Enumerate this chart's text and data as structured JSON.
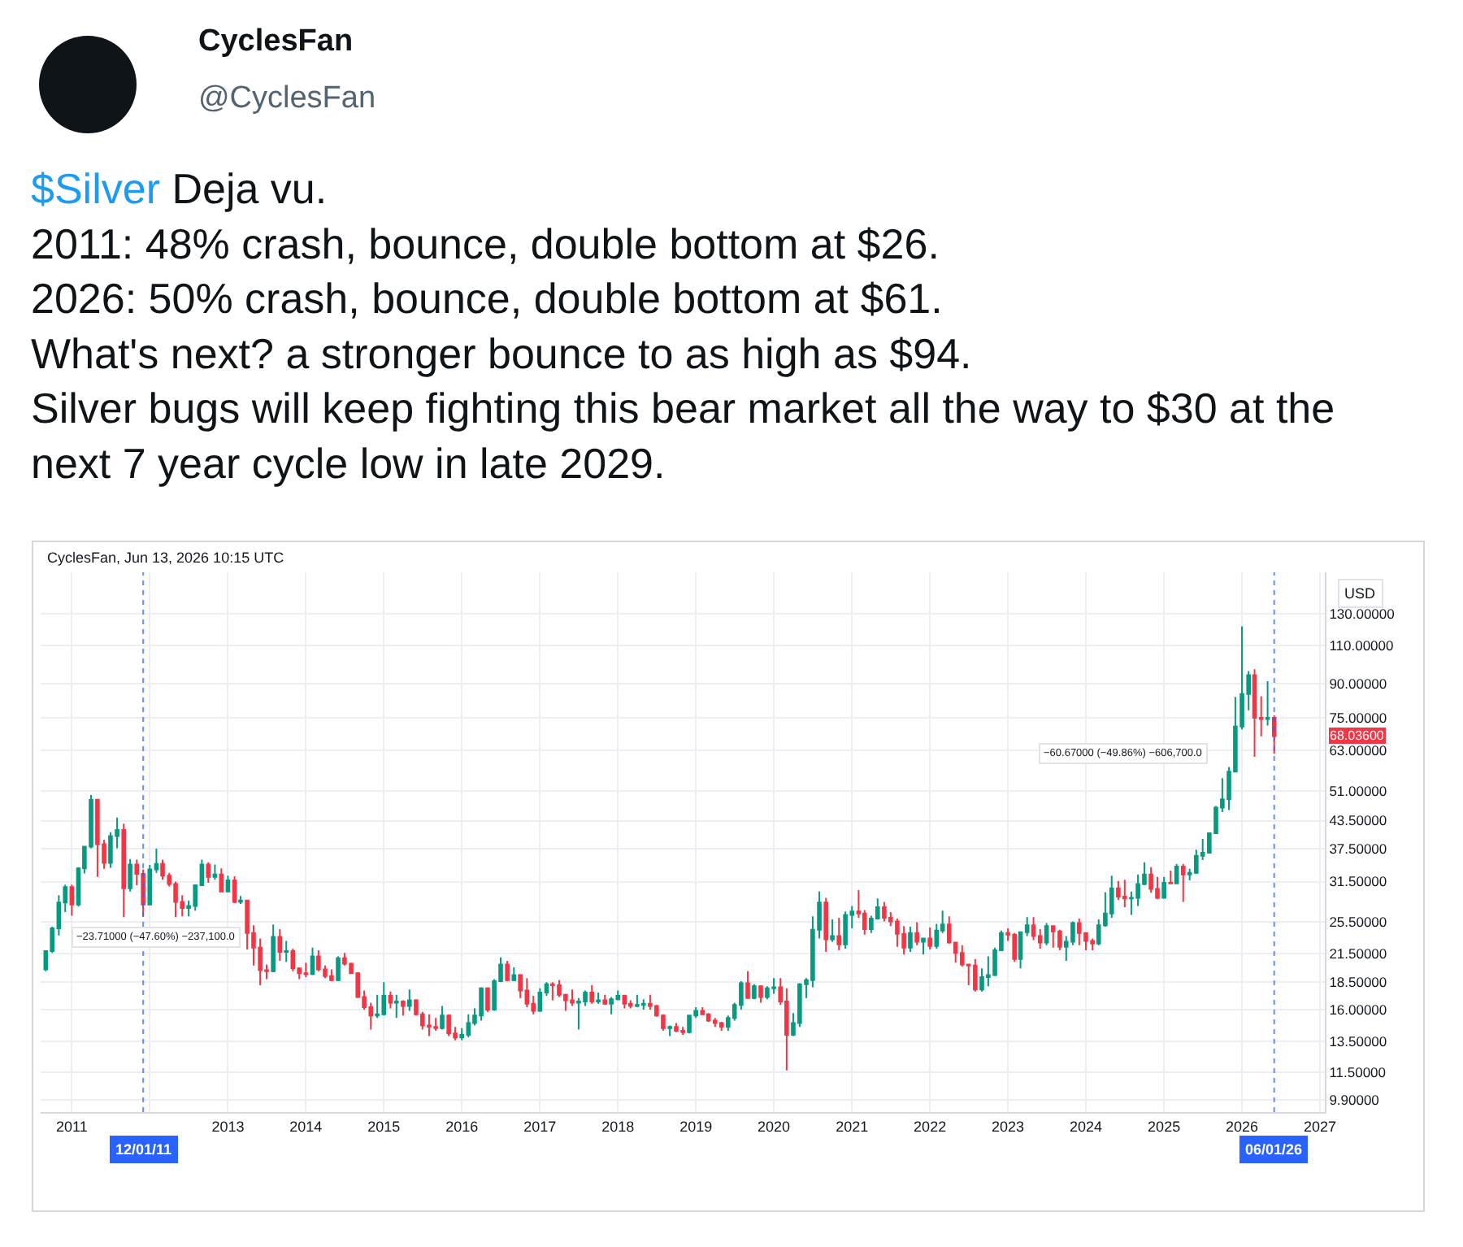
{
  "chart_data": {
    "type": "candlestick",
    "title": "$Silver Deja vu.\n2011: 48% crash, bounce, double bottom at $26.\n2026: 50% crash, bounce, double bottom at $61.\nWhat's next? a stronger bounce to as high as $94.\nSilver bugs will keep fighting this bear market all the way to $30 at the\nnext 7 year cycle low in late 2029.",
    "subtitle": "CyclesFan, Jun 13, 2026 10:15 UTC",
    "ylabel": "USD",
    "annotations": [
      "CyclesFan",
      "@CyclesFan",
      {
        "text": "−23.71000 (−47.60%) −237,100.0",
        "x": "2011-09",
        "y": 26.1
      },
      "−60.67000 (−49.86%) −606,700.0",
      "68.03600"
    ],
    "x": [
      "2010-09",
      "2010-10",
      "2010-11",
      "2010-12",
      "2011-01",
      "2011-02",
      "2011-03",
      "2011-04",
      "2011-05",
      "2011-06",
      "2011-07",
      "2011-08",
      "2011-09",
      "2011-10",
      "2011-11",
      "2011-12",
      "2012-01",
      "2012-02",
      "2012-03",
      "2012-04",
      "2012-05",
      "2012-06",
      "2012-07",
      "2012-08",
      "2012-09",
      "2012-10",
      "2012-11",
      "2012-12",
      "2013-01",
      "2013-02",
      "2013-03",
      "2013-04",
      "2013-05",
      "2013-06",
      "2013-07",
      "2013-08",
      "2013-09",
      "2013-10",
      "2013-11",
      "2013-12",
      "2014-01",
      "2014-02",
      "2014-03",
      "2014-04",
      "2014-05",
      "2014-06",
      "2014-07",
      "2014-08",
      "2014-09",
      "2014-10",
      "2014-11",
      "2014-12",
      "2015-01",
      "2015-02",
      "2015-03",
      "2015-04",
      "2015-05",
      "2015-06",
      "2015-07",
      "2015-08",
      "2015-09",
      "2015-10",
      "2015-11",
      "2015-12",
      "2016-01",
      "2016-02",
      "2016-03",
      "2016-04",
      "2016-05",
      "2016-06",
      "2016-07",
      "2016-08",
      "2016-09",
      "2016-10",
      "2016-11",
      "2016-12",
      "2017-01",
      "2017-02",
      "2017-03",
      "2017-04",
      "2017-05",
      "2017-06",
      "2017-07",
      "2017-08",
      "2017-09",
      "2017-10",
      "2017-11",
      "2017-12",
      "2018-01",
      "2018-02",
      "2018-03",
      "2018-04",
      "2018-05",
      "2018-06",
      "2018-07",
      "2018-08",
      "2018-09",
      "2018-10",
      "2018-11",
      "2018-12",
      "2019-01",
      "2019-02",
      "2019-03",
      "2019-04",
      "2019-05",
      "2019-06",
      "2019-07",
      "2019-08",
      "2019-09",
      "2019-10",
      "2019-11",
      "2019-12",
      "2020-01",
      "2020-02",
      "2020-03",
      "2020-04",
      "2020-05",
      "2020-06",
      "2020-07",
      "2020-08",
      "2020-09",
      "2020-10",
      "2020-11",
      "2020-12",
      "2021-01",
      "2021-02",
      "2021-03",
      "2021-04",
      "2021-05",
      "2021-06",
      "2021-07",
      "2021-08",
      "2021-09",
      "2021-10",
      "2021-11",
      "2021-12",
      "2022-01",
      "2022-02",
      "2022-03",
      "2022-04",
      "2022-05",
      "2022-06",
      "2022-07",
      "2022-08",
      "2022-09",
      "2022-10",
      "2022-11",
      "2022-12",
      "2023-01",
      "2023-02",
      "2023-03",
      "2023-04",
      "2023-05",
      "2023-06",
      "2023-07",
      "2023-08",
      "2023-09",
      "2023-10",
      "2023-11",
      "2023-12",
      "2024-01",
      "2024-02",
      "2024-03",
      "2024-04",
      "2024-05",
      "2024-06",
      "2024-07",
      "2024-08",
      "2024-09",
      "2024-10",
      "2024-11",
      "2024-12",
      "2025-01",
      "2025-02",
      "2025-03",
      "2025-04",
      "2025-05",
      "2025-06",
      "2025-07",
      "2025-08",
      "2025-09",
      "2025-10",
      "2025-11",
      "2025-12",
      "2026-01",
      "2026-02",
      "2026-03",
      "2026-04",
      "2026-05",
      "2026-06"
    ],
    "ohlc": [
      [
        19.8,
        21.9,
        19.6,
        21.8
      ],
      [
        21.8,
        24.8,
        21.6,
        24.6
      ],
      [
        24.6,
        29.3,
        23.7,
        28.2
      ],
      [
        28.2,
        31.0,
        26.8,
        30.6
      ],
      [
        30.6,
        31.0,
        26.3,
        27.9
      ],
      [
        27.9,
        34.0,
        27.6,
        33.8
      ],
      [
        33.8,
        38.0,
        32.9,
        37.9
      ],
      [
        37.9,
        49.8,
        37.6,
        48.6
      ],
      [
        48.6,
        48.7,
        32.3,
        38.4
      ],
      [
        38.4,
        39.3,
        33.7,
        34.8
      ],
      [
        34.8,
        40.9,
        33.9,
        40.1
      ],
      [
        40.1,
        44.2,
        37.6,
        41.4
      ],
      [
        41.4,
        42.8,
        26.1,
        30.4
      ],
      [
        30.4,
        35.5,
        29.9,
        34.5
      ],
      [
        34.5,
        35.4,
        30.9,
        32.8
      ],
      [
        32.8,
        33.6,
        26.2,
        27.9
      ],
      [
        27.9,
        34.4,
        27.8,
        33.6
      ],
      [
        33.6,
        37.5,
        33.0,
        34.6
      ],
      [
        34.6,
        35.4,
        31.8,
        32.5
      ],
      [
        32.5,
        33.0,
        30.7,
        31.1
      ],
      [
        31.1,
        31.5,
        26.1,
        28.3
      ],
      [
        28.3,
        29.3,
        26.2,
        27.4
      ],
      [
        27.4,
        28.5,
        26.2,
        27.7
      ],
      [
        27.7,
        31.0,
        27.0,
        30.9
      ],
      [
        30.9,
        35.4,
        30.8,
        34.5
      ],
      [
        34.5,
        34.9,
        31.3,
        32.3
      ],
      [
        32.3,
        34.5,
        31.8,
        32.7
      ],
      [
        32.7,
        33.8,
        29.8,
        29.9
      ],
      [
        29.9,
        32.5,
        29.8,
        31.7
      ],
      [
        31.7,
        32.4,
        28.1,
        28.3
      ],
      [
        28.3,
        29.2,
        28.0,
        28.5
      ],
      [
        28.5,
        28.6,
        22.0,
        24.0
      ],
      [
        24.0,
        25.0,
        20.2,
        22.2
      ],
      [
        22.2,
        23.3,
        18.2,
        19.7
      ],
      [
        19.7,
        20.3,
        18.8,
        19.6
      ],
      [
        19.6,
        25.1,
        19.5,
        23.5
      ],
      [
        23.5,
        24.5,
        20.7,
        21.7
      ],
      [
        21.7,
        23.0,
        20.6,
        21.8
      ],
      [
        21.8,
        22.1,
        19.6,
        19.9
      ],
      [
        19.9,
        20.0,
        18.8,
        19.4
      ],
      [
        19.4,
        20.5,
        19.0,
        19.3
      ],
      [
        19.3,
        22.2,
        19.2,
        21.2
      ],
      [
        21.2,
        21.9,
        19.6,
        19.8
      ],
      [
        19.8,
        20.2,
        18.9,
        19.1
      ],
      [
        19.1,
        19.8,
        18.6,
        18.7
      ],
      [
        18.7,
        21.2,
        18.6,
        21.0
      ],
      [
        21.0,
        21.6,
        20.2,
        20.4
      ],
      [
        20.4,
        20.5,
        19.3,
        19.4
      ],
      [
        19.4,
        19.5,
        17.0,
        17.1
      ],
      [
        17.1,
        17.7,
        16.0,
        16.2
      ],
      [
        16.2,
        16.6,
        14.4,
        15.5
      ],
      [
        15.5,
        17.3,
        15.3,
        15.6
      ],
      [
        15.6,
        18.5,
        15.5,
        17.2
      ],
      [
        17.2,
        17.6,
        16.1,
        16.6
      ],
      [
        16.6,
        17.3,
        15.3,
        16.7
      ],
      [
        16.7,
        16.8,
        15.5,
        16.3
      ],
      [
        16.3,
        17.8,
        15.9,
        16.8
      ],
      [
        16.8,
        16.9,
        15.5,
        15.6
      ],
      [
        15.6,
        15.8,
        14.4,
        14.7
      ],
      [
        14.7,
        15.6,
        13.9,
        14.6
      ],
      [
        14.6,
        15.3,
        14.3,
        14.5
      ],
      [
        14.5,
        16.3,
        14.4,
        15.5
      ],
      [
        15.5,
        15.6,
        13.9,
        14.1
      ],
      [
        14.1,
        14.6,
        13.6,
        13.8
      ],
      [
        13.8,
        14.5,
        13.6,
        14.0
      ],
      [
        14.0,
        15.6,
        13.8,
        14.9
      ],
      [
        14.9,
        16.1,
        14.7,
        15.5
      ],
      [
        15.5,
        18.0,
        15.1,
        17.9
      ],
      [
        17.9,
        18.0,
        15.8,
        16.0
      ],
      [
        16.0,
        18.8,
        15.9,
        18.6
      ],
      [
        18.6,
        21.1,
        18.5,
        20.3
      ],
      [
        20.3,
        20.7,
        18.6,
        18.7
      ],
      [
        18.7,
        20.0,
        18.6,
        19.2
      ],
      [
        19.2,
        19.3,
        17.0,
        17.7
      ],
      [
        17.7,
        18.9,
        16.2,
        16.5
      ],
      [
        16.5,
        17.2,
        15.6,
        15.9
      ],
      [
        15.9,
        17.9,
        15.8,
        17.5
      ],
      [
        17.5,
        18.5,
        17.2,
        18.3
      ],
      [
        18.3,
        18.5,
        16.8,
        18.2
      ],
      [
        18.2,
        18.7,
        17.1,
        17.3
      ],
      [
        17.3,
        17.4,
        15.9,
        16.8
      ],
      [
        16.8,
        17.8,
        16.3,
        16.6
      ],
      [
        16.6,
        17.0,
        14.4,
        16.7
      ],
      [
        16.7,
        17.7,
        16.3,
        17.5
      ],
      [
        17.5,
        18.2,
        16.5,
        16.7
      ],
      [
        16.7,
        17.5,
        16.5,
        16.8
      ],
      [
        16.8,
        17.3,
        16.4,
        16.5
      ],
      [
        16.5,
        17.1,
        15.6,
        16.9
      ],
      [
        16.9,
        17.7,
        16.8,
        17.2
      ],
      [
        17.2,
        17.3,
        16.1,
        16.5
      ],
      [
        16.5,
        16.8,
        16.1,
        16.3
      ],
      [
        16.3,
        17.3,
        16.2,
        16.4
      ],
      [
        16.4,
        16.9,
        16.0,
        16.5
      ],
      [
        16.5,
        17.3,
        16.0,
        16.3
      ],
      [
        16.3,
        16.4,
        15.4,
        15.5
      ],
      [
        15.5,
        15.6,
        14.3,
        14.5
      ],
      [
        14.5,
        14.7,
        13.9,
        14.6
      ],
      [
        14.6,
        14.9,
        14.2,
        14.3
      ],
      [
        14.3,
        14.6,
        14.0,
        14.2
      ],
      [
        14.2,
        15.5,
        14.1,
        15.5
      ],
      [
        15.5,
        16.2,
        15.3,
        15.9
      ],
      [
        15.9,
        16.2,
        15.6,
        15.6
      ],
      [
        15.6,
        15.7,
        15.0,
        15.1
      ],
      [
        15.1,
        15.3,
        14.6,
        14.9
      ],
      [
        14.9,
        15.0,
        14.3,
        14.6
      ],
      [
        14.6,
        15.5,
        14.3,
        15.3
      ],
      [
        15.3,
        16.6,
        15.1,
        16.4
      ],
      [
        16.4,
        18.6,
        16.0,
        18.4
      ],
      [
        18.4,
        19.6,
        17.0,
        17.0
      ],
      [
        17.0,
        18.3,
        16.9,
        18.1
      ],
      [
        18.1,
        18.2,
        16.6,
        17.1
      ],
      [
        17.1,
        18.1,
        16.9,
        17.9
      ],
      [
        17.9,
        18.9,
        17.4,
        18.0
      ],
      [
        18.0,
        18.9,
        16.4,
        16.7
      ],
      [
        16.7,
        17.9,
        11.6,
        14.0
      ],
      [
        14.0,
        15.7,
        13.9,
        14.9
      ],
      [
        14.9,
        18.4,
        14.6,
        18.3
      ],
      [
        18.3,
        18.9,
        17.0,
        18.7
      ],
      [
        18.7,
        26.2,
        18.0,
        24.4
      ],
      [
        24.4,
        29.9,
        23.3,
        28.2
      ],
      [
        28.2,
        28.9,
        21.7,
        23.2
      ],
      [
        23.2,
        25.8,
        22.9,
        23.6
      ],
      [
        23.6,
        26.0,
        21.9,
        22.6
      ],
      [
        22.6,
        26.9,
        22.1,
        26.4
      ],
      [
        26.4,
        27.7,
        24.6,
        26.9
      ],
      [
        26.9,
        30.1,
        26.0,
        26.6
      ],
      [
        26.6,
        27.1,
        23.8,
        24.5
      ],
      [
        24.5,
        26.3,
        24.0,
        25.9
      ],
      [
        25.9,
        28.8,
        25.8,
        27.5
      ],
      [
        27.5,
        28.3,
        25.5,
        26.0
      ],
      [
        26.0,
        26.8,
        24.9,
        25.5
      ],
      [
        25.5,
        25.9,
        22.3,
        23.9
      ],
      [
        23.9,
        24.9,
        21.4,
        22.2
      ],
      [
        22.2,
        24.8,
        21.7,
        24.0
      ],
      [
        24.0,
        25.4,
        22.5,
        22.9
      ],
      [
        22.9,
        23.4,
        21.4,
        23.3
      ],
      [
        23.3,
        24.7,
        22.0,
        22.4
      ],
      [
        22.4,
        25.2,
        22.1,
        24.3
      ],
      [
        24.3,
        27.0,
        24.0,
        25.1
      ],
      [
        25.1,
        26.2,
        22.7,
        22.8
      ],
      [
        22.8,
        22.9,
        20.5,
        21.6
      ],
      [
        21.6,
        22.5,
        20.1,
        20.3
      ],
      [
        20.3,
        20.4,
        18.2,
        20.2
      ],
      [
        20.2,
        20.9,
        17.6,
        17.8
      ],
      [
        17.8,
        19.9,
        17.6,
        19.0
      ],
      [
        19.0,
        21.2,
        18.1,
        19.2
      ],
      [
        19.2,
        22.2,
        19.1,
        21.9
      ],
      [
        21.9,
        24.3,
        21.8,
        24.0
      ],
      [
        24.0,
        24.6,
        23.0,
        23.8
      ],
      [
        23.8,
        24.0,
        20.6,
        20.9
      ],
      [
        20.9,
        24.2,
        19.9,
        24.1
      ],
      [
        24.1,
        26.1,
        23.6,
        25.0
      ],
      [
        25.0,
        26.1,
        23.1,
        23.6
      ],
      [
        23.6,
        24.5,
        22.1,
        22.8
      ],
      [
        22.8,
        25.3,
        22.5,
        24.9
      ],
      [
        24.9,
        25.0,
        22.2,
        24.2
      ],
      [
        24.2,
        24.4,
        21.9,
        22.3
      ],
      [
        22.3,
        23.6,
        20.7,
        22.9
      ],
      [
        22.9,
        25.5,
        22.5,
        25.3
      ],
      [
        25.3,
        25.9,
        22.5,
        24.0
      ],
      [
        24.0,
        24.1,
        21.9,
        23.0
      ],
      [
        23.0,
        23.3,
        21.9,
        22.7
      ],
      [
        22.7,
        25.8,
        22.5,
        25.0
      ],
      [
        25.0,
        29.8,
        24.8,
        26.6
      ],
      [
        26.6,
        32.5,
        26.0,
        30.4
      ],
      [
        30.4,
        31.6,
        28.6,
        29.1
      ],
      [
        29.1,
        31.8,
        27.5,
        28.8
      ],
      [
        28.8,
        29.9,
        26.4,
        28.9
      ],
      [
        28.9,
        32.7,
        27.7,
        31.1
      ],
      [
        31.1,
        34.9,
        30.9,
        32.7
      ],
      [
        32.7,
        34.0,
        29.7,
        30.3
      ],
      [
        30.3,
        32.3,
        28.7,
        28.9
      ],
      [
        28.9,
        32.3,
        28.8,
        31.3
      ],
      [
        31.3,
        33.4,
        31.1,
        31.2
      ],
      [
        31.2,
        34.6,
        31.1,
        34.1
      ],
      [
        34.1,
        34.6,
        28.3,
        32.7
      ],
      [
        32.7,
        33.7,
        31.7,
        33.0
      ],
      [
        33.0,
        37.3,
        32.8,
        36.1
      ],
      [
        36.1,
        39.5,
        35.3,
        36.7
      ],
      [
        36.7,
        40.8,
        36.6,
        40.7
      ],
      [
        40.7,
        47.0,
        40.6,
        46.6
      ],
      [
        46.6,
        54.5,
        45.5,
        48.7
      ],
      [
        48.7,
        57.8,
        46.0,
        56.4
      ],
      [
        56.4,
        83.8,
        56.3,
        71.6
      ],
      [
        71.6,
        121.7,
        70.5,
        85.0
      ],
      [
        85.0,
        96.0,
        78.0,
        94.0
      ],
      [
        94.0,
        97.0,
        61.0,
        75.0
      ],
      [
        75.0,
        84.0,
        68.0,
        74.5
      ],
      [
        74.5,
        91.0,
        72.0,
        75.0
      ],
      [
        75.0,
        76.0,
        62.0,
        68.036
      ]
    ],
    "xlim": [
      "2010-08-08",
      "2027-01-24"
    ],
    "xticks": [
      "2011",
      {
        "value": "2012",
        "label": null
      },
      "2013",
      "2014",
      "2015",
      "2016",
      "2017",
      "2018",
      "2019",
      "2020",
      "2021",
      "2022",
      "2023",
      "2024",
      "2025",
      "2026",
      "2027"
    ],
    "ylim": [
      9.3,
      162
    ],
    "yticks": [
      {
        "value": 9.9,
        "label": "9.90000"
      },
      {
        "value": 11.5,
        "label": "11.50000"
      },
      {
        "value": 13.5,
        "label": "13.50000"
      },
      {
        "value": 16,
        "label": "16.00000"
      },
      {
        "value": 18.5,
        "label": "18.50000"
      },
      {
        "value": 21.5,
        "label": "21.50000"
      },
      {
        "value": 25.5,
        "label": "25.50000"
      },
      {
        "value": 31.5,
        "label": "31.50000"
      },
      {
        "value": 37.5,
        "label": "37.50000"
      },
      {
        "value": 43.5,
        "label": "43.50000"
      },
      {
        "value": 51,
        "label": "51.00000"
      },
      {
        "value": 63,
        "label": "63.00000"
      },
      {
        "value": 75,
        "label": "75.00000"
      },
      {
        "value": 90,
        "label": "90.00000"
      },
      {
        "value": 110,
        "label": "110.00000"
      },
      {
        "value": 130,
        "label": "130.00000"
      }
    ],
    "log": "y",
    "grid": true,
    "ref_lines": [
      {
        "axis": "x",
        "value": "2011-12-01",
        "label": "12/01/11",
        "color": "#2962ff",
        "line_style": "dotted"
      },
      {
        "axis": "x",
        "value": "2026-06-01",
        "label": "06/01/26",
        "color": "#2962ff",
        "line_style": "dotted"
      }
    ]
  }
}
